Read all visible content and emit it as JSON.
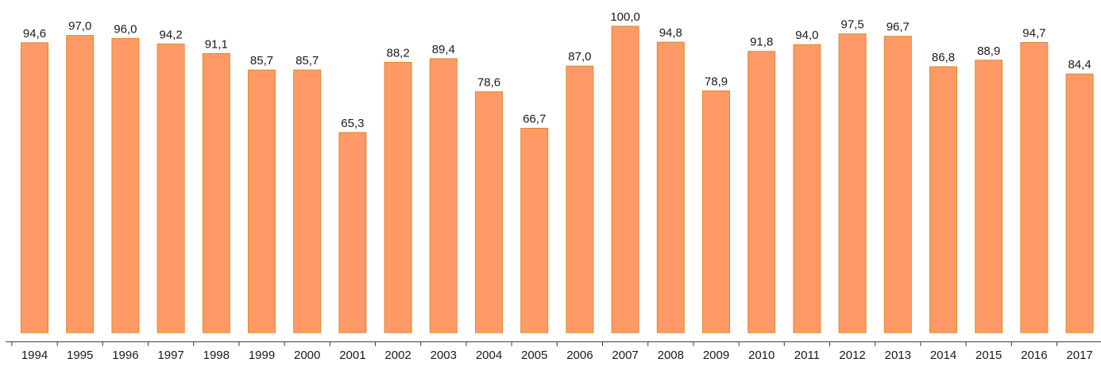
{
  "chart_data": {
    "type": "bar",
    "categories": [
      "1994",
      "1995",
      "1996",
      "1997",
      "1998",
      "1999",
      "2000",
      "2001",
      "2002",
      "2003",
      "2004",
      "2005",
      "2006",
      "2007",
      "2008",
      "2009",
      "2010",
      "2011",
      "2012",
      "2013",
      "2014",
      "2015",
      "2016",
      "2017"
    ],
    "values": [
      94.6,
      97.0,
      96.0,
      94.2,
      91.1,
      85.7,
      85.7,
      65.3,
      88.2,
      89.4,
      78.6,
      66.7,
      87.0,
      100.0,
      94.8,
      78.9,
      91.8,
      94.0,
      97.5,
      96.7,
      86.8,
      88.9,
      94.7,
      84.4
    ],
    "value_labels": [
      "94,6",
      "97,0",
      "96,0",
      "94,2",
      "91,1",
      "85,7",
      "85,7",
      "65,3",
      "88,2",
      "89,4",
      "78,6",
      "66,7",
      "87,0",
      "100,0",
      "94,8",
      "78,9",
      "91,8",
      "94,0",
      "97,5",
      "96,7",
      "86,8",
      "88,9",
      "94,7",
      "84,4"
    ],
    "title": "",
    "xlabel": "",
    "ylabel": "",
    "ylim": [
      0,
      100
    ],
    "grid": false,
    "legend": "none",
    "y_axis_shown": false
  },
  "colors": {
    "bar_fill": "#ff9966",
    "bar_stroke": "#e08a2a",
    "axis": "#404040",
    "text": "#1a1a1a"
  }
}
